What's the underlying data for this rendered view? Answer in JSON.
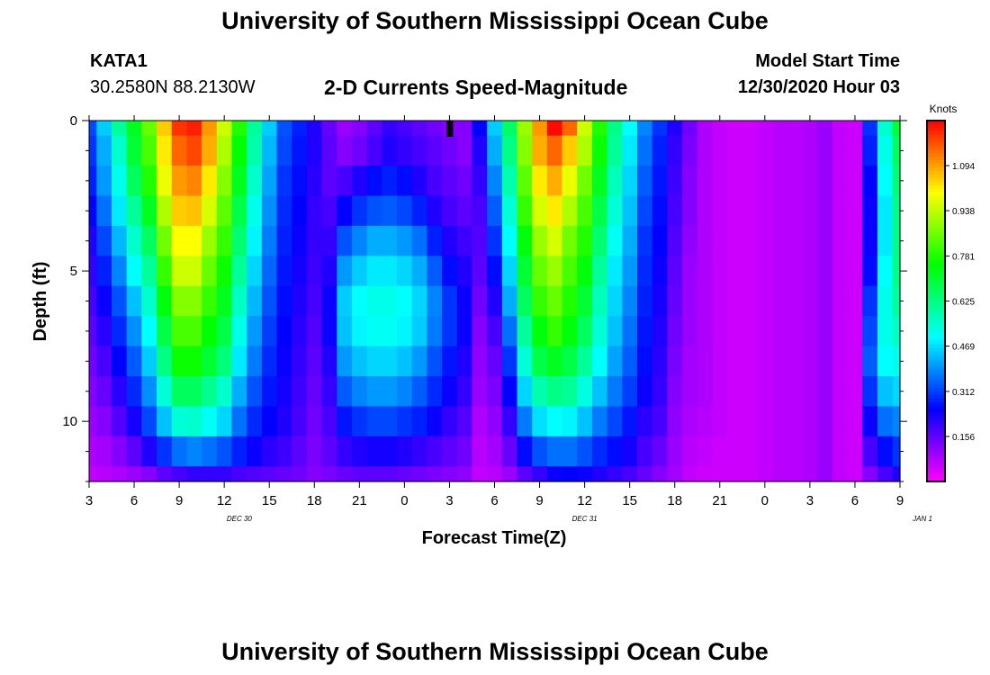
{
  "page": {
    "title_top": "University of Southern Mississippi Ocean Cube",
    "title_bottom": "University of Southern Mississippi Ocean Cube",
    "station": "KATA1",
    "coordinates": "30.2580N 88.2130W",
    "model_start_label": "Model Start Time",
    "model_start_value": "12/30/2020 Hour 03"
  },
  "chart_data": {
    "type": "heatmap",
    "title": "2-D Currents Speed-Magnitude",
    "xlabel": "Forecast Time(Z)",
    "ylabel": "Depth (ft)",
    "x_hours_range": [
      0,
      54
    ],
    "y_depth_range": [
      0,
      12
    ],
    "x_tick_labels": [
      "3",
      "6",
      "9",
      "12",
      "15",
      "18",
      "21",
      "0",
      "3",
      "6",
      "9",
      "12",
      "15",
      "18",
      "21",
      "0",
      "3",
      "6",
      "9"
    ],
    "y_tick_labels": [
      "0",
      "5",
      "10"
    ],
    "date_labels": [
      {
        "text": "DEC 30",
        "hour": 10
      },
      {
        "text": "DEC 31",
        "hour": 33
      },
      {
        "text": "JAN 1",
        "hour": 55.5
      }
    ],
    "colorbar": {
      "unit": "Knots",
      "range": [
        0,
        1.25
      ],
      "tick_labels": [
        "0.156",
        "0.312",
        "0.469",
        "0.625",
        "0.781",
        "0.938",
        "1.094"
      ],
      "tick_values": [
        0.156,
        0.312,
        0.469,
        0.625,
        0.781,
        0.938,
        1.094
      ]
    },
    "marker_hour": 24,
    "time_hours": [
      0,
      1,
      2,
      3,
      4,
      5,
      6,
      7,
      8,
      9,
      10,
      11,
      12,
      13,
      14,
      15,
      16,
      17,
      18,
      19,
      20,
      21,
      22,
      23,
      24,
      25,
      26,
      27,
      28,
      29,
      30,
      31,
      32,
      33,
      34,
      35,
      36,
      37,
      38,
      39,
      40,
      41,
      42,
      43,
      44,
      45,
      46,
      47,
      48,
      49,
      50,
      51,
      52,
      53,
      54
    ],
    "depth_levels_ft": [
      0,
      1,
      2,
      3,
      4,
      5,
      6,
      7,
      8,
      9,
      10,
      11,
      12
    ],
    "speed_knots": [
      [
        0.32,
        0.45,
        0.6,
        0.72,
        0.85,
        1.05,
        1.2,
        1.22,
        1.1,
        0.95,
        0.78,
        0.6,
        0.45,
        0.33,
        0.28,
        0.22,
        0.15,
        0.1,
        0.12,
        0.16,
        0.2,
        0.18,
        0.16,
        0.14,
        0.12,
        0.12,
        0.25,
        0.45,
        0.65,
        0.9,
        1.1,
        1.24,
        1.15,
        0.95,
        0.78,
        0.62,
        0.5,
        0.38,
        0.3,
        0.22,
        0.14,
        0.08,
        0.06,
        0.05,
        0.05,
        0.06,
        0.07,
        0.07,
        0.08,
        0.1,
        0.06,
        0.05,
        0.3,
        0.55,
        0.7
      ],
      [
        0.3,
        0.42,
        0.55,
        0.7,
        0.82,
        1.02,
        1.15,
        1.18,
        1.08,
        0.92,
        0.75,
        0.58,
        0.43,
        0.32,
        0.27,
        0.22,
        0.16,
        0.12,
        0.14,
        0.18,
        0.22,
        0.2,
        0.18,
        0.16,
        0.14,
        0.12,
        0.22,
        0.42,
        0.62,
        0.88,
        1.08,
        1.15,
        1.05,
        0.92,
        0.76,
        0.6,
        0.48,
        0.36,
        0.28,
        0.2,
        0.13,
        0.08,
        0.06,
        0.05,
        0.05,
        0.06,
        0.07,
        0.07,
        0.08,
        0.1,
        0.06,
        0.05,
        0.28,
        0.52,
        0.66
      ],
      [
        0.28,
        0.4,
        0.52,
        0.66,
        0.78,
        0.98,
        1.1,
        1.12,
        1.02,
        0.88,
        0.72,
        0.55,
        0.41,
        0.3,
        0.26,
        0.21,
        0.16,
        0.18,
        0.22,
        0.26,
        0.28,
        0.26,
        0.22,
        0.18,
        0.16,
        0.14,
        0.2,
        0.38,
        0.58,
        0.84,
        1.02,
        1.08,
        0.98,
        0.86,
        0.72,
        0.57,
        0.46,
        0.34,
        0.27,
        0.19,
        0.12,
        0.08,
        0.06,
        0.05,
        0.05,
        0.06,
        0.07,
        0.07,
        0.08,
        0.1,
        0.06,
        0.05,
        0.25,
        0.5,
        0.64
      ],
      [
        0.25,
        0.36,
        0.48,
        0.6,
        0.72,
        0.92,
        1.05,
        1.06,
        0.96,
        0.84,
        0.68,
        0.52,
        0.39,
        0.29,
        0.25,
        0.2,
        0.18,
        0.25,
        0.3,
        0.33,
        0.34,
        0.32,
        0.28,
        0.22,
        0.18,
        0.16,
        0.18,
        0.34,
        0.54,
        0.8,
        0.96,
        1.02,
        0.92,
        0.82,
        0.68,
        0.54,
        0.44,
        0.32,
        0.26,
        0.18,
        0.12,
        0.08,
        0.06,
        0.05,
        0.05,
        0.06,
        0.07,
        0.07,
        0.08,
        0.1,
        0.06,
        0.05,
        0.24,
        0.48,
        0.62
      ],
      [
        0.22,
        0.32,
        0.43,
        0.55,
        0.66,
        0.86,
        1.0,
        1.0,
        0.9,
        0.8,
        0.64,
        0.49,
        0.37,
        0.28,
        0.24,
        0.2,
        0.2,
        0.33,
        0.38,
        0.42,
        0.42,
        0.4,
        0.36,
        0.28,
        0.22,
        0.19,
        0.17,
        0.3,
        0.5,
        0.74,
        0.9,
        0.96,
        0.86,
        0.78,
        0.64,
        0.51,
        0.42,
        0.3,
        0.25,
        0.17,
        0.11,
        0.08,
        0.06,
        0.05,
        0.05,
        0.06,
        0.07,
        0.07,
        0.08,
        0.1,
        0.06,
        0.05,
        0.24,
        0.48,
        0.62
      ],
      [
        0.2,
        0.28,
        0.38,
        0.5,
        0.6,
        0.8,
        0.95,
        0.95,
        0.85,
        0.76,
        0.6,
        0.46,
        0.35,
        0.27,
        0.23,
        0.19,
        0.22,
        0.4,
        0.45,
        0.48,
        0.48,
        0.46,
        0.42,
        0.34,
        0.26,
        0.22,
        0.16,
        0.26,
        0.46,
        0.7,
        0.85,
        0.9,
        0.82,
        0.74,
        0.6,
        0.48,
        0.4,
        0.29,
        0.24,
        0.16,
        0.1,
        0.08,
        0.06,
        0.05,
        0.05,
        0.06,
        0.07,
        0.07,
        0.08,
        0.1,
        0.06,
        0.05,
        0.26,
        0.5,
        0.62
      ],
      [
        0.18,
        0.24,
        0.33,
        0.44,
        0.55,
        0.74,
        0.88,
        0.88,
        0.8,
        0.72,
        0.56,
        0.43,
        0.33,
        0.26,
        0.22,
        0.18,
        0.24,
        0.45,
        0.5,
        0.52,
        0.52,
        0.5,
        0.46,
        0.38,
        0.3,
        0.24,
        0.14,
        0.22,
        0.42,
        0.66,
        0.8,
        0.85,
        0.78,
        0.7,
        0.57,
        0.46,
        0.38,
        0.28,
        0.23,
        0.15,
        0.1,
        0.08,
        0.06,
        0.05,
        0.05,
        0.06,
        0.07,
        0.07,
        0.08,
        0.1,
        0.06,
        0.05,
        0.3,
        0.52,
        0.6
      ],
      [
        0.16,
        0.21,
        0.29,
        0.39,
        0.5,
        0.68,
        0.82,
        0.82,
        0.75,
        0.68,
        0.52,
        0.4,
        0.31,
        0.25,
        0.21,
        0.17,
        0.24,
        0.44,
        0.49,
        0.51,
        0.51,
        0.49,
        0.45,
        0.37,
        0.3,
        0.24,
        0.12,
        0.18,
        0.36,
        0.6,
        0.74,
        0.8,
        0.74,
        0.66,
        0.54,
        0.44,
        0.36,
        0.27,
        0.22,
        0.14,
        0.1,
        0.08,
        0.06,
        0.05,
        0.05,
        0.06,
        0.07,
        0.07,
        0.08,
        0.1,
        0.06,
        0.05,
        0.32,
        0.52,
        0.56
      ],
      [
        0.14,
        0.18,
        0.25,
        0.34,
        0.45,
        0.62,
        0.76,
        0.76,
        0.7,
        0.63,
        0.48,
        0.37,
        0.29,
        0.24,
        0.2,
        0.16,
        0.22,
        0.4,
        0.44,
        0.46,
        0.46,
        0.44,
        0.4,
        0.33,
        0.27,
        0.22,
        0.11,
        0.15,
        0.3,
        0.54,
        0.68,
        0.72,
        0.68,
        0.6,
        0.5,
        0.41,
        0.34,
        0.26,
        0.21,
        0.13,
        0.09,
        0.08,
        0.06,
        0.05,
        0.05,
        0.06,
        0.07,
        0.07,
        0.08,
        0.1,
        0.06,
        0.05,
        0.34,
        0.5,
        0.52
      ],
      [
        0.12,
        0.15,
        0.21,
        0.29,
        0.39,
        0.54,
        0.66,
        0.66,
        0.61,
        0.55,
        0.42,
        0.33,
        0.27,
        0.23,
        0.19,
        0.15,
        0.2,
        0.34,
        0.38,
        0.4,
        0.4,
        0.38,
        0.34,
        0.29,
        0.24,
        0.2,
        0.1,
        0.13,
        0.25,
        0.46,
        0.58,
        0.62,
        0.6,
        0.53,
        0.44,
        0.37,
        0.31,
        0.24,
        0.2,
        0.12,
        0.09,
        0.08,
        0.06,
        0.05,
        0.05,
        0.06,
        0.07,
        0.07,
        0.08,
        0.1,
        0.06,
        0.05,
        0.3,
        0.44,
        0.46
      ],
      [
        0.1,
        0.12,
        0.17,
        0.23,
        0.32,
        0.44,
        0.54,
        0.55,
        0.51,
        0.46,
        0.36,
        0.29,
        0.25,
        0.22,
        0.18,
        0.14,
        0.18,
        0.27,
        0.3,
        0.32,
        0.32,
        0.3,
        0.28,
        0.24,
        0.2,
        0.17,
        0.08,
        0.11,
        0.2,
        0.37,
        0.47,
        0.5,
        0.49,
        0.44,
        0.37,
        0.32,
        0.27,
        0.21,
        0.18,
        0.11,
        0.08,
        0.07,
        0.06,
        0.05,
        0.05,
        0.06,
        0.07,
        0.07,
        0.08,
        0.1,
        0.06,
        0.05,
        0.24,
        0.36,
        0.38
      ],
      [
        0.08,
        0.09,
        0.12,
        0.16,
        0.22,
        0.3,
        0.36,
        0.38,
        0.36,
        0.33,
        0.28,
        0.24,
        0.21,
        0.19,
        0.16,
        0.13,
        0.16,
        0.2,
        0.22,
        0.23,
        0.23,
        0.22,
        0.2,
        0.18,
        0.16,
        0.14,
        0.07,
        0.09,
        0.15,
        0.26,
        0.33,
        0.36,
        0.36,
        0.33,
        0.29,
        0.26,
        0.23,
        0.18,
        0.15,
        0.1,
        0.07,
        0.06,
        0.05,
        0.05,
        0.05,
        0.06,
        0.07,
        0.07,
        0.08,
        0.1,
        0.06,
        0.05,
        0.18,
        0.26,
        0.3
      ],
      [
        0.06,
        0.07,
        0.08,
        0.1,
        0.12,
        0.16,
        0.18,
        0.2,
        0.2,
        0.2,
        0.18,
        0.17,
        0.16,
        0.15,
        0.14,
        0.12,
        0.13,
        0.15,
        0.16,
        0.16,
        0.16,
        0.15,
        0.14,
        0.13,
        0.12,
        0.11,
        0.06,
        0.07,
        0.1,
        0.16,
        0.2,
        0.24,
        0.25,
        0.24,
        0.22,
        0.2,
        0.18,
        0.15,
        0.12,
        0.09,
        0.06,
        0.05,
        0.05,
        0.05,
        0.05,
        0.06,
        0.07,
        0.07,
        0.08,
        0.1,
        0.06,
        0.05,
        0.12,
        0.18,
        0.22
      ]
    ]
  }
}
